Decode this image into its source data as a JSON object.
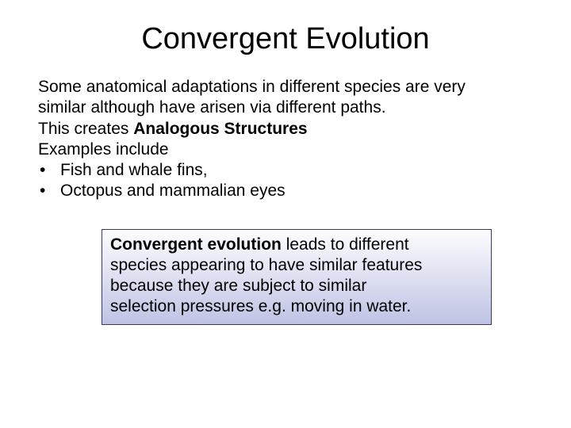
{
  "title": "Convergent Evolution",
  "para1a": "Some anatomical adaptations in different species are very",
  "para1b": "similar although have arisen via different paths.",
  "para2_prefix": "This creates ",
  "para2_bold": "Analogous Structures",
  "para3": "Examples include",
  "bullets": {
    "dot": "•",
    "item1": "Fish and whale fins,",
    "item2": "Octopus and mammalian eyes"
  },
  "callout": {
    "bold": "Convergent evolution",
    "rest1": " leads to different",
    "line2": "species appearing to have similar features",
    "line3": "because they are subject to similar",
    "line4": "selection pressures e.g. moving in water.",
    "gradient_top": "#fdfdfe",
    "gradient_bottom": "#bfc3e4",
    "border_color": "#3a3a5a"
  },
  "text_color": "#000000",
  "background_color": "#ffffff",
  "title_fontsize": 38,
  "body_fontsize": 21
}
